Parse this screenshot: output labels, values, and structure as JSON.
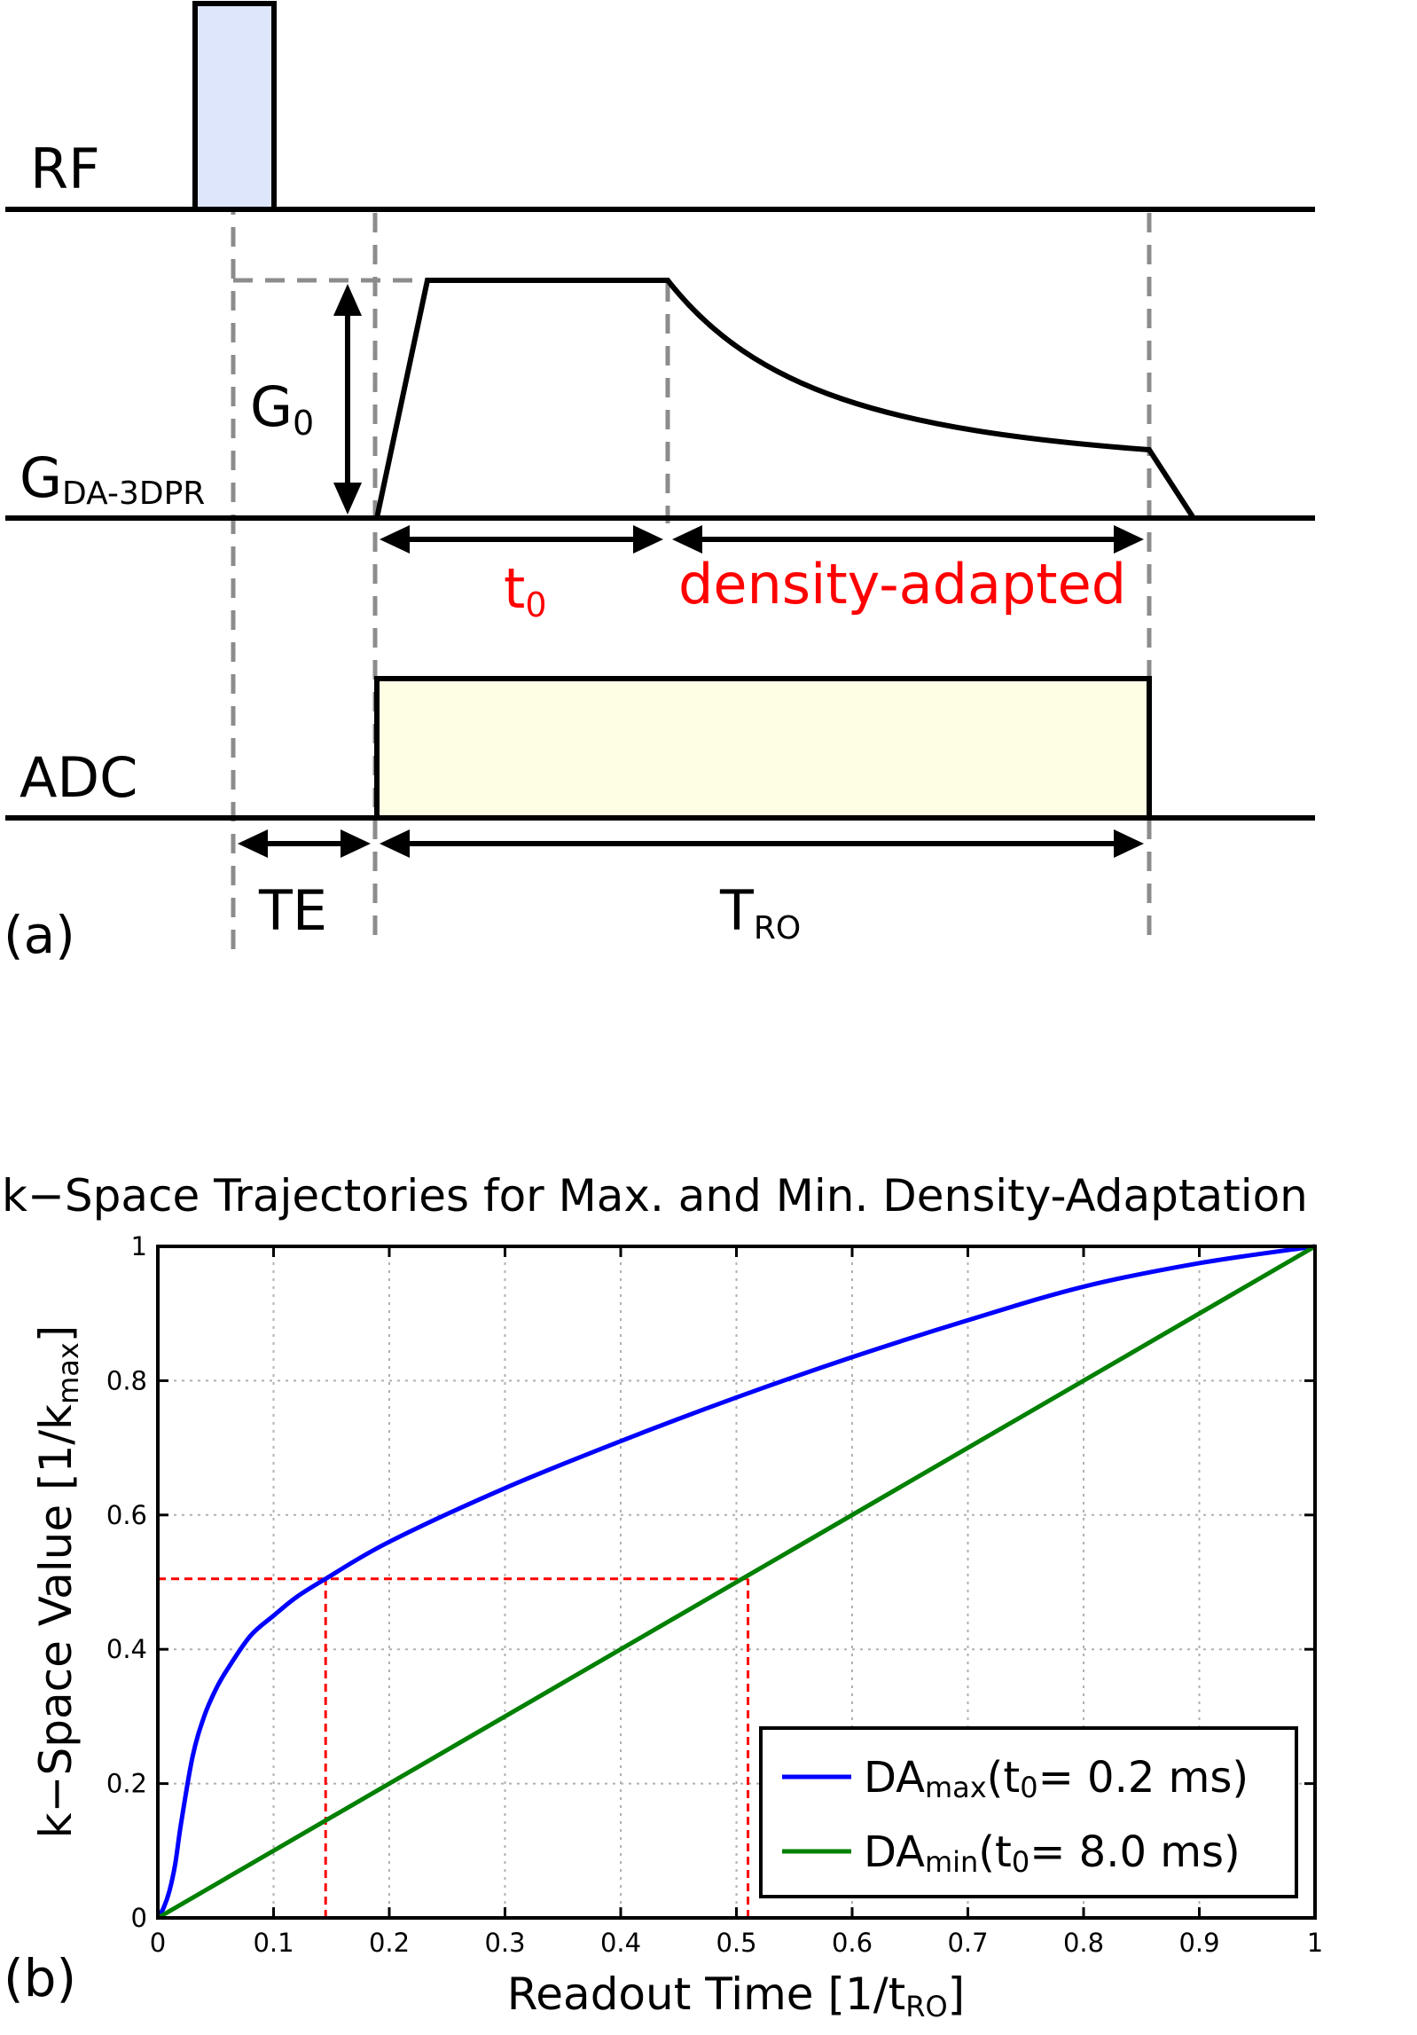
{
  "diagram": {
    "panel_label": "(a)",
    "rows": {
      "rf": "RF",
      "gradient": "G",
      "gradient_sub": "DA-3DPR",
      "adc": "ADC"
    },
    "g0": "G",
    "g0_sub": "0",
    "t0": "t",
    "t0_sub": "0",
    "density_adapted": "density-adapted",
    "te": "TE",
    "tro": "T",
    "tro_sub": "RO",
    "colors": {
      "rf_fill": "#dde6fb",
      "adc_fill": "#fefee4",
      "guide": "#8c8c8c",
      "red_text": "#ff0000"
    }
  },
  "chart": {
    "panel_label": "(b)",
    "title": "k−Space Trajectories for Max. and Min. Density-Adaptation",
    "xlabel": "Readout Time [1/t",
    "xlabel_sub": "RO",
    "xlabel_end": "]",
    "ylabel": "k−Space Value [1/k",
    "ylabel_sub": "max",
    "ylabel_end": "]",
    "legend": [
      {
        "prefix": "DA",
        "sub": "max",
        "mid": "(t",
        "sub2": "0",
        "suffix": "= 0.2 ms)"
      },
      {
        "prefix": "DA",
        "sub": "min",
        "mid": "(t",
        "sub2": "0",
        "suffix": "= 8.0 ms)"
      }
    ]
  },
  "chart_data": {
    "type": "line",
    "title": "k−Space Trajectories for Max. and Min. Density-Adaptation",
    "xlabel": "Readout Time [1/tRO]",
    "ylabel": "k−Space Value [1/kmax]",
    "xlim": [
      0,
      1
    ],
    "ylim": [
      0,
      1
    ],
    "xticks": [
      "0",
      "0.1",
      "0.2",
      "0.3",
      "0.4",
      "0.5",
      "0.6",
      "0.7",
      "0.8",
      "0.9",
      "1"
    ],
    "yticks": [
      "0",
      "0.2",
      "0.4",
      "0.6",
      "0.8",
      "1"
    ],
    "grid": true,
    "legend_position": "bottom-right",
    "series": [
      {
        "name": "DAmax (t0= 0.2 ms)",
        "color": "#0000ff",
        "x": [
          0,
          0.005,
          0.01,
          0.015,
          0.02,
          0.03,
          0.04,
          0.05,
          0.06,
          0.08,
          0.1,
          0.12,
          0.145,
          0.2,
          0.3,
          0.4,
          0.5,
          0.6,
          0.7,
          0.8,
          0.9,
          1.0
        ],
        "y": [
          0,
          0.015,
          0.04,
          0.08,
          0.14,
          0.24,
          0.3,
          0.34,
          0.37,
          0.42,
          0.45,
          0.478,
          0.505,
          0.56,
          0.64,
          0.71,
          0.775,
          0.835,
          0.89,
          0.94,
          0.975,
          1.0
        ]
      },
      {
        "name": "DAmin (t0= 8.0 ms)",
        "color": "#008000",
        "x": [
          0,
          1
        ],
        "y": [
          0,
          1
        ]
      }
    ],
    "annotations": [
      {
        "type": "dashed-guide",
        "color": "#ff0000",
        "points": [
          [
            0,
            0.505
          ],
          [
            0.51,
            0.505
          ]
        ]
      },
      {
        "type": "dashed-guide",
        "color": "#ff0000",
        "points": [
          [
            0.145,
            0
          ],
          [
            0.145,
            0.505
          ]
        ]
      },
      {
        "type": "dashed-guide",
        "color": "#ff0000",
        "points": [
          [
            0.51,
            0
          ],
          [
            0.51,
            0.505
          ]
        ]
      }
    ]
  }
}
